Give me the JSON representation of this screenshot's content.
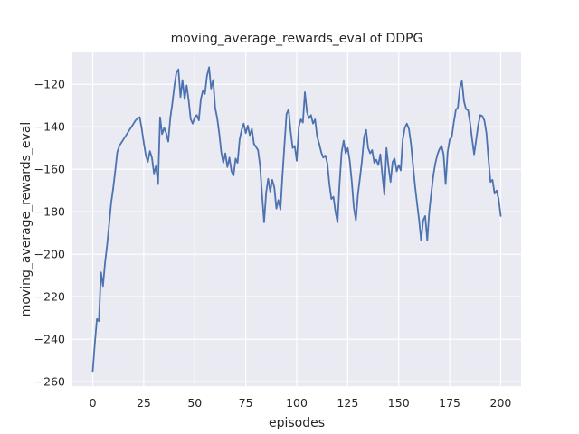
{
  "figure": {
    "title": "moving_average_rewards_eval of DDPG",
    "xlabel": "episodes",
    "ylabel": "moving_average_rewards_eval"
  },
  "chart_data": {
    "type": "line",
    "title": "moving_average_rewards_eval of DDPG",
    "xlabel": "episodes",
    "ylabel": "moving_average_rewards_eval",
    "xlim": [
      -10,
      210
    ],
    "ylim": [
      -262.15,
      -104.85
    ],
    "xticks": [
      0,
      25,
      50,
      75,
      100,
      125,
      150,
      175,
      200
    ],
    "yticks": [
      -260,
      -240,
      -220,
      -200,
      -180,
      -160,
      -140,
      -120
    ],
    "xtick_labels": [
      "0",
      "25",
      "50",
      "75",
      "100",
      "125",
      "150",
      "175",
      "200"
    ],
    "ytick_labels": [
      "−260",
      "−240",
      "−220",
      "−200",
      "−180",
      "−160",
      "−140",
      "−120"
    ],
    "grid": true,
    "legend": false,
    "style": {
      "fig_bg": "#ffffff",
      "plot_bg": "#eaeaf2",
      "grid_color": "#ffffff",
      "line_color": "#4c72b0",
      "text_color": "#262626"
    },
    "series": [
      {
        "name": "moving_average_rewards_eval",
        "color": "#4c72b0",
        "x_start": 0,
        "x_step": 1,
        "values": [
          -255,
          -242,
          -230.5,
          -231.5,
          -208.5,
          -215,
          -204,
          -196,
          -186,
          -176,
          -169,
          -161,
          -152,
          -149,
          -147.5,
          -146,
          -144.5,
          -143,
          -141.5,
          -140,
          -138.5,
          -137,
          -136,
          -135.5,
          -141,
          -147.5,
          -153.5,
          -156.5,
          -151.5,
          -154.5,
          -162,
          -158.5,
          -167,
          -135.5,
          -143.5,
          -140.5,
          -143,
          -147,
          -136,
          -129,
          -121,
          -114.5,
          -113,
          -126,
          -118,
          -127,
          -120.5,
          -127.5,
          -136.5,
          -138.5,
          -135.5,
          -134.5,
          -137,
          -127,
          -123,
          -124.5,
          -116,
          -112,
          -122,
          -118,
          -131,
          -136,
          -143,
          -152,
          -157,
          -152.5,
          -159,
          -154.5,
          -161,
          -163,
          -155,
          -157,
          -146,
          -141.5,
          -138.5,
          -143,
          -139.5,
          -144,
          -141,
          -148,
          -149.5,
          -151,
          -158,
          -172,
          -185,
          -171,
          -164.5,
          -170.5,
          -165,
          -168.5,
          -178.5,
          -174.5,
          -179,
          -163,
          -148,
          -134,
          -131.8,
          -142,
          -150,
          -149,
          -156,
          -140,
          -136.5,
          -138,
          -123.7,
          -133,
          -136,
          -134.5,
          -138.5,
          -136.5,
          -144.5,
          -148,
          -152,
          -154.5,
          -153.5,
          -157,
          -167,
          -174,
          -173,
          -180,
          -185,
          -167,
          -152,
          -146.5,
          -152.5,
          -150,
          -156,
          -166,
          -178,
          -184,
          -172,
          -164,
          -156,
          -145,
          -141.5,
          -150,
          -152.5,
          -151,
          -157,
          -155.5,
          -158,
          -153,
          -163,
          -172,
          -150,
          -159,
          -166,
          -156.5,
          -155,
          -161,
          -158,
          -160.5,
          -146,
          -140.5,
          -138.5,
          -141,
          -148,
          -158,
          -168,
          -176,
          -184,
          -193.5,
          -184,
          -182,
          -193.5,
          -180,
          -171,
          -162.5,
          -157,
          -153,
          -150.5,
          -149,
          -153,
          -167,
          -152,
          -146,
          -145,
          -138,
          -132,
          -131,
          -121.5,
          -118.5,
          -128,
          -131.7,
          -132.2,
          -138,
          -146,
          -153,
          -146,
          -139,
          -134.5,
          -135,
          -137,
          -143,
          -155,
          -166,
          -165,
          -171.5,
          -170,
          -174,
          -182
        ]
      }
    ]
  }
}
